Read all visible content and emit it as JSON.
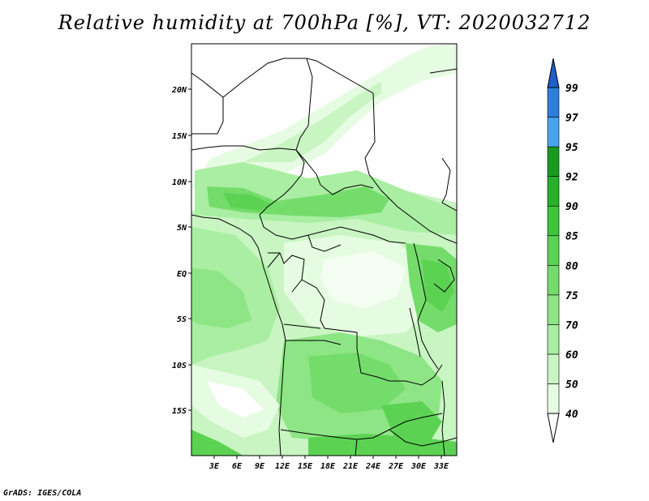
{
  "title": "Relative humidity at 700hPa [%], VT: 2020032712",
  "footer": "GrADS: IGES/COLA",
  "map": {
    "lon_range": [
      0,
      35
    ],
    "lat_range": [
      -20,
      25
    ],
    "lon_ticks": [
      "3E",
      "6E",
      "9E",
      "12E",
      "15E",
      "18E",
      "21E",
      "24E",
      "27E",
      "30E",
      "33E"
    ],
    "lat_ticks": [
      "20N",
      "15N",
      "10N",
      "5N",
      "EQ",
      "5S",
      "10S",
      "15S"
    ]
  },
  "colorbar": {
    "labels": [
      "40",
      "50",
      "60",
      "70",
      "75",
      "80",
      "85",
      "90",
      "92",
      "95",
      "97",
      "99"
    ],
    "colors": [
      "#ffffff",
      "#e6fce2",
      "#c9f5c3",
      "#a9eea2",
      "#8ee585",
      "#74dc6b",
      "#5cd253",
      "#3fc43a",
      "#28b029",
      "#1a9a1f",
      "#4aa3ee",
      "#2e7fdc",
      "#1f5fc8"
    ]
  }
}
